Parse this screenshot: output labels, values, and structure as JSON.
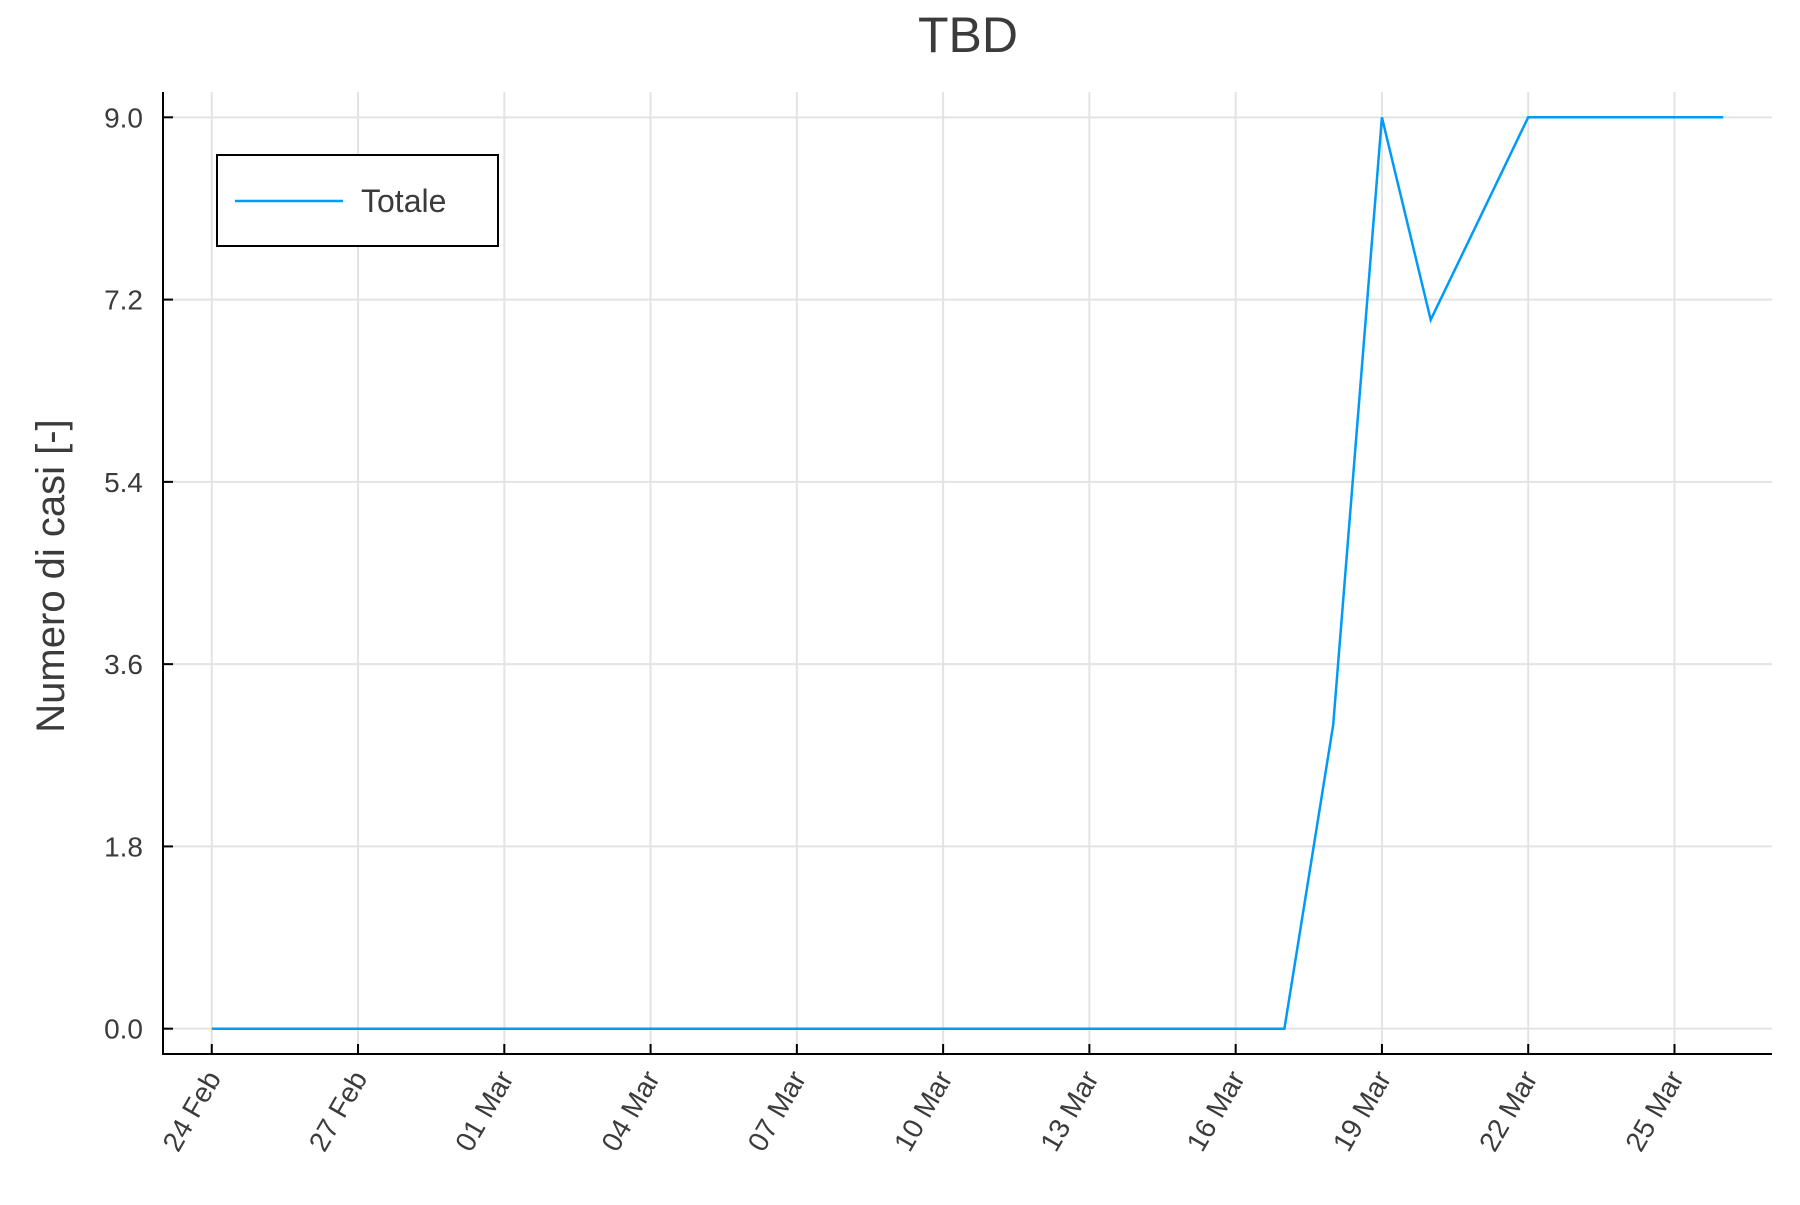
{
  "chart_data": {
    "type": "line",
    "title": "TBD",
    "xlabel": "",
    "ylabel": "Numero di casi [-]",
    "x_tick_labels": [
      "24 Feb",
      "27 Feb",
      "01 Mar",
      "04 Mar",
      "07 Mar",
      "10 Mar",
      "13 Mar",
      "16 Mar",
      "19 Mar",
      "22 Mar",
      "25 Mar"
    ],
    "y_ticks": [
      0.0,
      1.8,
      3.6,
      5.4,
      7.2,
      9.0
    ],
    "y_tick_labels": [
      "0.0",
      "1.8",
      "3.6",
      "5.4",
      "7.2",
      "9.0"
    ],
    "ylim": [
      -0.25,
      9.25
    ],
    "xlim": [
      "2020-02-23",
      "2020-03-27"
    ],
    "grid": true,
    "legend_position": "top-left",
    "series": [
      {
        "name": "Totale",
        "color": "#009af9",
        "points": [
          {
            "x": "2020-02-24",
            "y": 0
          },
          {
            "x": "2020-02-25",
            "y": 0
          },
          {
            "x": "2020-02-26",
            "y": 0
          },
          {
            "x": "2020-02-27",
            "y": 0
          },
          {
            "x": "2020-02-28",
            "y": 0
          },
          {
            "x": "2020-02-29",
            "y": 0
          },
          {
            "x": "2020-03-01",
            "y": 0
          },
          {
            "x": "2020-03-02",
            "y": 0
          },
          {
            "x": "2020-03-03",
            "y": 0
          },
          {
            "x": "2020-03-04",
            "y": 0
          },
          {
            "x": "2020-03-05",
            "y": 0
          },
          {
            "x": "2020-03-06",
            "y": 0
          },
          {
            "x": "2020-03-07",
            "y": 0
          },
          {
            "x": "2020-03-08",
            "y": 0
          },
          {
            "x": "2020-03-09",
            "y": 0
          },
          {
            "x": "2020-03-10",
            "y": 0
          },
          {
            "x": "2020-03-11",
            "y": 0
          },
          {
            "x": "2020-03-12",
            "y": 0
          },
          {
            "x": "2020-03-13",
            "y": 0
          },
          {
            "x": "2020-03-14",
            "y": 0
          },
          {
            "x": "2020-03-15",
            "y": 0
          },
          {
            "x": "2020-03-16",
            "y": 0
          },
          {
            "x": "2020-03-17",
            "y": 0
          },
          {
            "x": "2020-03-18",
            "y": 3
          },
          {
            "x": "2020-03-19",
            "y": 9
          },
          {
            "x": "2020-03-20",
            "y": 7
          },
          {
            "x": "2020-03-21",
            "y": 8
          },
          {
            "x": "2020-03-22",
            "y": 9
          },
          {
            "x": "2020-03-23",
            "y": 9
          },
          {
            "x": "2020-03-24",
            "y": 9
          },
          {
            "x": "2020-03-25",
            "y": 9
          },
          {
            "x": "2020-03-26",
            "y": 9
          }
        ]
      }
    ]
  }
}
